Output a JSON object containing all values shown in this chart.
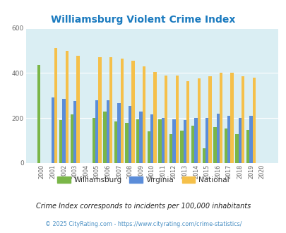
{
  "title": "Williamsburg Violent Crime Index",
  "years": [
    2000,
    2001,
    2002,
    2003,
    2004,
    2005,
    2006,
    2007,
    2008,
    2009,
    2010,
    2011,
    2012,
    2013,
    2014,
    2015,
    2016,
    2017,
    2018,
    2019,
    2020
  ],
  "williamsburg": [
    435,
    0,
    190,
    215,
    0,
    200,
    230,
    185,
    180,
    195,
    140,
    195,
    130,
    145,
    165,
    65,
    160,
    155,
    130,
    148,
    0
  ],
  "virginia": [
    0,
    290,
    285,
    275,
    0,
    280,
    280,
    265,
    255,
    230,
    215,
    200,
    195,
    192,
    200,
    200,
    220,
    210,
    200,
    210,
    0
  ],
  "national": [
    0,
    510,
    500,
    475,
    0,
    470,
    470,
    465,
    455,
    430,
    405,
    390,
    390,
    365,
    375,
    385,
    400,
    400,
    385,
    380,
    0
  ],
  "williamsburg_color": "#7ab648",
  "virginia_color": "#5b8dd9",
  "national_color": "#f5c04a",
  "bg_color": "#daeef3",
  "ylim": [
    0,
    600
  ],
  "yticks": [
    0,
    200,
    400,
    600
  ],
  "legend_labels": [
    "Williamsburg",
    "Virginia",
    "National"
  ],
  "footnote1": "Crime Index corresponds to incidents per 100,000 inhabitants",
  "footnote2": "© 2025 CityRating.com - https://www.cityrating.com/crime-statistics/",
  "title_color": "#1a7abf",
  "footnote1_color": "#222222",
  "footnote2_color": "#4a90c4"
}
